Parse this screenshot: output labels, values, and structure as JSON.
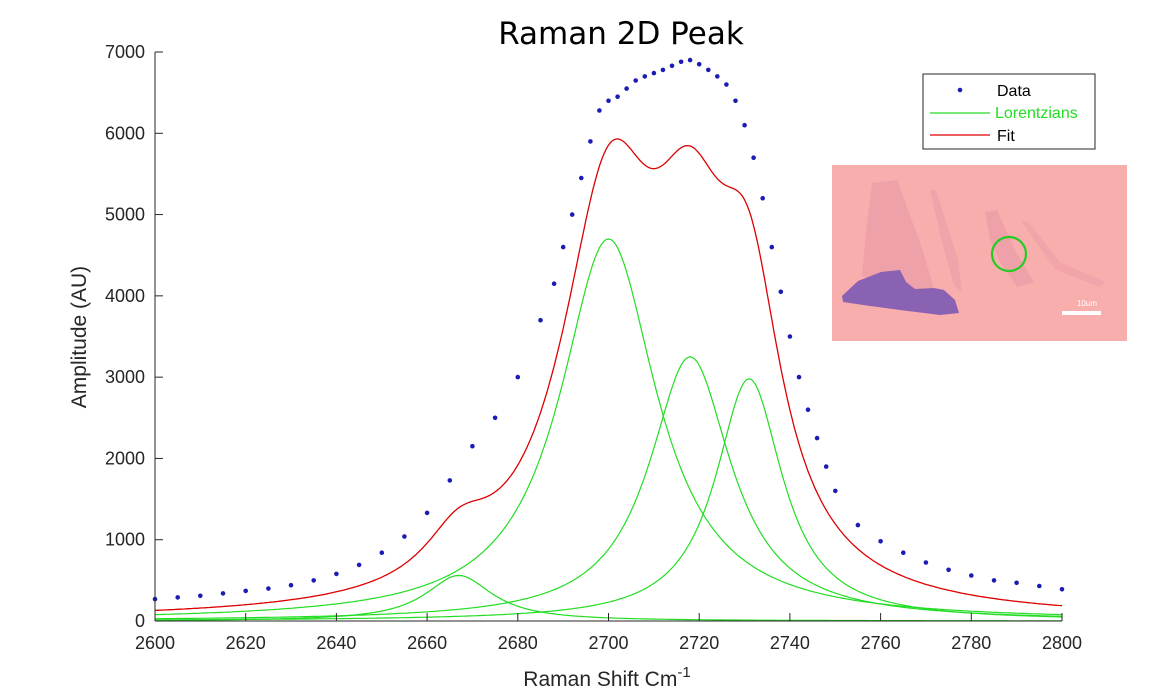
{
  "colors": {
    "data": "#1c1cb4",
    "lorentzian": "#22dd22",
    "fit": "#dd0000",
    "axis": "#262626",
    "inset_bg": "#f7aeac",
    "flake_dark": "#8a62b4",
    "flake_light": "#e998a8",
    "marker_circle": "#22cc22"
  },
  "chart_data": {
    "type": "line",
    "title": "Raman 2D Peak",
    "xlabel": "Raman Shift Cm",
    "xlabel_superscript": "-1",
    "ylabel": "Amplitude (AU)",
    "xlim": [
      2600,
      2800
    ],
    "ylim": [
      0,
      7000
    ],
    "xticks": [
      2600,
      2620,
      2640,
      2660,
      2680,
      2700,
      2720,
      2740,
      2760,
      2780,
      2800
    ],
    "yticks": [
      0,
      1000,
      2000,
      3000,
      4000,
      5000,
      6000,
      7000
    ],
    "grid": false,
    "legend_position": "top-right",
    "legend": [
      {
        "label": "Data",
        "style": "markers"
      },
      {
        "label": "Lorentzians",
        "style": "line"
      },
      {
        "label": "Fit",
        "style": "line"
      }
    ],
    "lorentzians": [
      {
        "center": 2667,
        "amplitude": 560,
        "hwhm": 9
      },
      {
        "center": 2700,
        "amplitude": 4700,
        "hwhm": 13
      },
      {
        "center": 2718,
        "amplitude": 3250,
        "hwhm": 11
      },
      {
        "center": 2731,
        "amplitude": 2980,
        "hwhm": 9
      }
    ],
    "fit_baseline": 0,
    "series": [
      {
        "name": "Data",
        "x": [
          2600,
          2605,
          2610,
          2615,
          2620,
          2625,
          2630,
          2635,
          2640,
          2645,
          2650,
          2655,
          2660,
          2665,
          2670,
          2675,
          2680,
          2685,
          2688,
          2690,
          2692,
          2694,
          2696,
          2698,
          2700,
          2702,
          2704,
          2706,
          2708,
          2710,
          2712,
          2714,
          2716,
          2718,
          2720,
          2722,
          2724,
          2726,
          2728,
          2730,
          2732,
          2734,
          2736,
          2738,
          2740,
          2742,
          2744,
          2746,
          2748,
          2750,
          2755,
          2760,
          2765,
          2770,
          2775,
          2780,
          2785,
          2790,
          2795,
          2800
        ],
        "y": [
          270,
          290,
          310,
          340,
          370,
          400,
          440,
          500,
          580,
          690,
          840,
          1040,
          1330,
          1730,
          2150,
          2500,
          3000,
          3700,
          4150,
          4600,
          5000,
          5450,
          5900,
          6280,
          6400,
          6450,
          6550,
          6650,
          6700,
          6740,
          6780,
          6830,
          6880,
          6900,
          6850,
          6780,
          6700,
          6600,
          6400,
          6100,
          5700,
          5200,
          4600,
          4050,
          3500,
          3000,
          2600,
          2250,
          1900,
          1600,
          1180,
          980,
          840,
          720,
          630,
          560,
          500,
          470,
          430,
          390
        ]
      }
    ]
  },
  "legend_box": {
    "data_label": "Data",
    "lorentzians_label": "Lorentzians",
    "fit_label": "Fit"
  },
  "inset": {
    "scale_bar_label": "10um"
  }
}
